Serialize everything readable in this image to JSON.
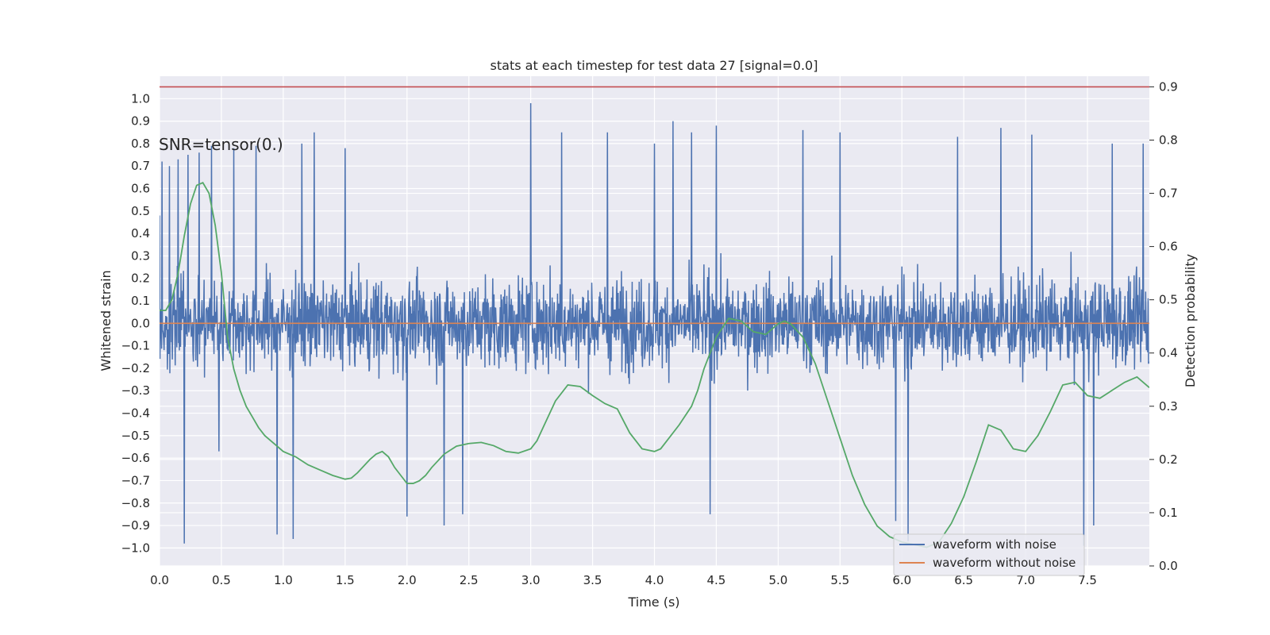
{
  "chart_data": {
    "type": "line",
    "title": "stats at each timestep for test data 27 [signal=0.0]",
    "xlabel": "Time (s)",
    "ylabel": "Whitened strain",
    "y2label": "Detection probability",
    "annotation": "SNR=tensor(0.)",
    "xlim": [
      0,
      8
    ],
    "ylim": [
      -1.08,
      1.1
    ],
    "y2lim": [
      0,
      0.92
    ],
    "x_ticks": [
      0.0,
      0.5,
      1.0,
      1.5,
      2.0,
      2.5,
      3.0,
      3.5,
      4.0,
      4.5,
      5.0,
      5.5,
      6.0,
      6.5,
      7.0,
      7.5
    ],
    "x_tick_labels": [
      "0.0",
      "0.5",
      "1.0",
      "1.5",
      "2.0",
      "2.5",
      "3.0",
      "3.5",
      "4.0",
      "4.5",
      "5.0",
      "5.5",
      "6.0",
      "6.5",
      "7.0",
      "7.5"
    ],
    "y_ticks": [
      1.0,
      0.9,
      0.8,
      0.7,
      0.6,
      0.5,
      0.4,
      0.3,
      0.2,
      0.1,
      0.0,
      -0.1,
      -0.2,
      -0.3,
      -0.4,
      -0.5,
      -0.6,
      -0.7,
      -0.8,
      -0.9,
      -1.0
    ],
    "y_tick_labels": [
      "1.0",
      "0.9",
      "0.8",
      "0.7",
      "0.6",
      "0.5",
      "0.4",
      "0.3",
      "0.2",
      "0.1",
      "0.0",
      "−0.1",
      "−0.2",
      "−0.3",
      "−0.4",
      "−0.5",
      "−0.6",
      "−0.7",
      "−0.8",
      "−0.9",
      "−1.0"
    ],
    "y2_ticks": [
      0.9,
      0.8,
      0.7,
      0.6,
      0.5,
      0.4,
      0.3,
      0.2,
      0.1,
      0.0
    ],
    "y2_tick_labels": [
      "0.9",
      "0.8",
      "0.7",
      "0.6",
      "0.5",
      "0.4",
      "0.3",
      "0.2",
      "0.1",
      "0.0"
    ],
    "threshold": 0.9,
    "legend_position": "lower-right",
    "grid": true,
    "series": [
      {
        "name": "waveform with noise",
        "color": "#4c72b0",
        "axis": "left",
        "description_peaks": [
          [
            0.0,
            0.48
          ],
          [
            0.02,
            0.72
          ],
          [
            0.08,
            0.7
          ],
          [
            0.15,
            0.73
          ],
          [
            0.2,
            -0.98
          ],
          [
            0.23,
            0.75
          ],
          [
            0.32,
            0.76
          ],
          [
            0.42,
            0.79
          ],
          [
            0.48,
            -0.57
          ],
          [
            0.6,
            0.78
          ],
          [
            0.78,
            0.79
          ],
          [
            0.95,
            -0.94
          ],
          [
            1.08,
            -0.96
          ],
          [
            1.15,
            0.8
          ],
          [
            1.25,
            0.85
          ],
          [
            1.5,
            0.78
          ],
          [
            2.0,
            -0.86
          ],
          [
            2.3,
            -0.9
          ],
          [
            2.45,
            -0.85
          ],
          [
            3.0,
            0.98
          ],
          [
            3.25,
            0.85
          ],
          [
            3.62,
            0.85
          ],
          [
            4.0,
            0.8
          ],
          [
            4.15,
            0.9
          ],
          [
            4.3,
            0.85
          ],
          [
            4.45,
            -0.85
          ],
          [
            4.5,
            0.88
          ],
          [
            5.2,
            0.86
          ],
          [
            5.5,
            0.85
          ],
          [
            5.95,
            -0.88
          ],
          [
            6.05,
            -0.97
          ],
          [
            6.45,
            0.83
          ],
          [
            6.8,
            0.87
          ],
          [
            7.05,
            0.84
          ],
          [
            7.47,
            -0.99
          ],
          [
            7.55,
            -0.9
          ],
          [
            7.7,
            0.8
          ],
          [
            7.95,
            0.8
          ]
        ]
      },
      {
        "name": "waveform without noise",
        "color": "#dd8452",
        "axis": "left",
        "x": [
          0.0,
          8.0
        ],
        "y": [
          0.0,
          0.0
        ]
      },
      {
        "name": "detection probability",
        "color": "#55a868",
        "axis": "right",
        "x": [
          0.0,
          0.05,
          0.1,
          0.15,
          0.2,
          0.25,
          0.3,
          0.35,
          0.4,
          0.45,
          0.5,
          0.55,
          0.6,
          0.65,
          0.7,
          0.75,
          0.8,
          0.85,
          0.9,
          0.95,
          1.0,
          1.1,
          1.2,
          1.3,
          1.4,
          1.5,
          1.55,
          1.6,
          1.7,
          1.75,
          1.8,
          1.85,
          1.9,
          1.95,
          2.0,
          2.05,
          2.1,
          2.15,
          2.2,
          2.3,
          2.4,
          2.5,
          2.6,
          2.7,
          2.8,
          2.9,
          3.0,
          3.05,
          3.1,
          3.2,
          3.3,
          3.4,
          3.5,
          3.6,
          3.7,
          3.8,
          3.9,
          4.0,
          4.05,
          4.1,
          4.2,
          4.3,
          4.35,
          4.4,
          4.5,
          4.6,
          4.7,
          4.8,
          4.9,
          5.0,
          5.05,
          5.1,
          5.2,
          5.3,
          5.4,
          5.5,
          5.6,
          5.7,
          5.8,
          5.9,
          6.0,
          6.1,
          6.2,
          6.3,
          6.4,
          6.5,
          6.6,
          6.7,
          6.8,
          6.9,
          7.0,
          7.1,
          7.2,
          7.3,
          7.4,
          7.5,
          7.6,
          7.7,
          7.8,
          7.9,
          8.0
        ],
        "y": [
          0.48,
          0.48,
          0.5,
          0.55,
          0.62,
          0.68,
          0.715,
          0.72,
          0.7,
          0.64,
          0.55,
          0.43,
          0.37,
          0.33,
          0.3,
          0.28,
          0.26,
          0.245,
          0.235,
          0.225,
          0.215,
          0.205,
          0.19,
          0.18,
          0.17,
          0.163,
          0.165,
          0.175,
          0.2,
          0.21,
          0.215,
          0.205,
          0.185,
          0.17,
          0.155,
          0.155,
          0.16,
          0.17,
          0.185,
          0.21,
          0.225,
          0.23,
          0.232,
          0.226,
          0.215,
          0.212,
          0.22,
          0.235,
          0.26,
          0.31,
          0.34,
          0.337,
          0.32,
          0.305,
          0.295,
          0.25,
          0.22,
          0.215,
          0.22,
          0.235,
          0.265,
          0.3,
          0.33,
          0.37,
          0.43,
          0.465,
          0.46,
          0.44,
          0.435,
          0.455,
          0.46,
          0.455,
          0.43,
          0.38,
          0.31,
          0.24,
          0.17,
          0.115,
          0.075,
          0.055,
          0.045,
          0.04,
          0.035,
          0.045,
          0.08,
          0.13,
          0.195,
          0.265,
          0.255,
          0.22,
          0.215,
          0.245,
          0.29,
          0.34,
          0.345,
          0.32,
          0.315,
          0.33,
          0.345,
          0.355,
          0.335
        ]
      }
    ]
  }
}
